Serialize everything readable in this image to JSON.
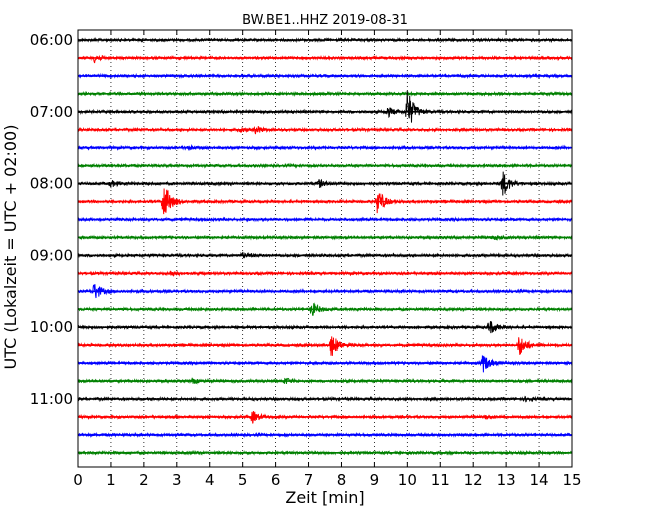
{
  "chart_data": {
    "type": "line",
    "title": "BW.BE1..HHZ 2019-08-31",
    "xlabel": "Zeit  [min]",
    "ylabel": "UTC (Lokalzeit = UTC + 02:00)",
    "xlim": [
      0,
      15
    ],
    "x_ticks": [
      "0",
      "1",
      "2",
      "3",
      "4",
      "5",
      "6",
      "7",
      "8",
      "9",
      "10",
      "11",
      "12",
      "13",
      "14",
      "15"
    ],
    "y_ticks": [
      "06:00",
      "07:00",
      "08:00",
      "09:00",
      "10:00",
      "11:00"
    ],
    "grid": true,
    "trace_minutes": 15,
    "start_time": "06:00",
    "row_colors": [
      "#000000",
      "#ff0000",
      "#0000ff",
      "#008000"
    ],
    "rows": [
      {
        "time": "06:00",
        "events": []
      },
      {
        "time": "06:15",
        "events": [
          {
            "t": 0.5,
            "amp": 4
          }
        ]
      },
      {
        "time": "06:30",
        "events": []
      },
      {
        "time": "06:45",
        "events": []
      },
      {
        "time": "07:00",
        "events": [
          {
            "t": 10.0,
            "amp": 22
          },
          {
            "t": 9.4,
            "amp": 5
          }
        ]
      },
      {
        "time": "07:15",
        "events": [
          {
            "t": 5.4,
            "amp": 4
          },
          {
            "t": 4.9,
            "amp": 2
          }
        ]
      },
      {
        "time": "07:30",
        "events": [
          {
            "t": 3.3,
            "amp": 2
          }
        ]
      },
      {
        "time": "07:45",
        "events": []
      },
      {
        "time": "08:00",
        "events": [
          {
            "t": 12.9,
            "amp": 13
          },
          {
            "t": 7.3,
            "amp": 4
          },
          {
            "t": 1.0,
            "amp": 3
          }
        ]
      },
      {
        "time": "08:15",
        "events": [
          {
            "t": 2.6,
            "amp": 20
          },
          {
            "t": 9.1,
            "amp": 13
          }
        ]
      },
      {
        "time": "08:30",
        "events": []
      },
      {
        "time": "08:45",
        "events": [
          {
            "t": 12.6,
            "amp": 2
          }
        ]
      },
      {
        "time": "09:00",
        "events": [
          {
            "t": 5.0,
            "amp": 3
          }
        ]
      },
      {
        "time": "09:15",
        "events": [
          {
            "t": 2.8,
            "amp": 2
          }
        ]
      },
      {
        "time": "09:30",
        "events": [
          {
            "t": 0.5,
            "amp": 9
          }
        ]
      },
      {
        "time": "09:45",
        "events": [
          {
            "t": 7.1,
            "amp": 7
          }
        ]
      },
      {
        "time": "10:00",
        "events": [
          {
            "t": 12.5,
            "amp": 7
          }
        ]
      },
      {
        "time": "10:15",
        "events": [
          {
            "t": 7.7,
            "amp": 12
          },
          {
            "t": 13.4,
            "amp": 11
          }
        ]
      },
      {
        "time": "10:30",
        "events": [
          {
            "t": 12.3,
            "amp": 9
          }
        ]
      },
      {
        "time": "10:45",
        "events": [
          {
            "t": 6.3,
            "amp": 3
          },
          {
            "t": 3.5,
            "amp": 2
          }
        ]
      },
      {
        "time": "11:00",
        "events": [
          {
            "t": 13.6,
            "amp": 2
          }
        ]
      },
      {
        "time": "11:15",
        "events": [
          {
            "t": 5.3,
            "amp": 6
          },
          {
            "t": 12.4,
            "amp": 2
          }
        ]
      },
      {
        "time": "11:30",
        "events": []
      },
      {
        "time": "11:45",
        "events": []
      }
    ]
  }
}
